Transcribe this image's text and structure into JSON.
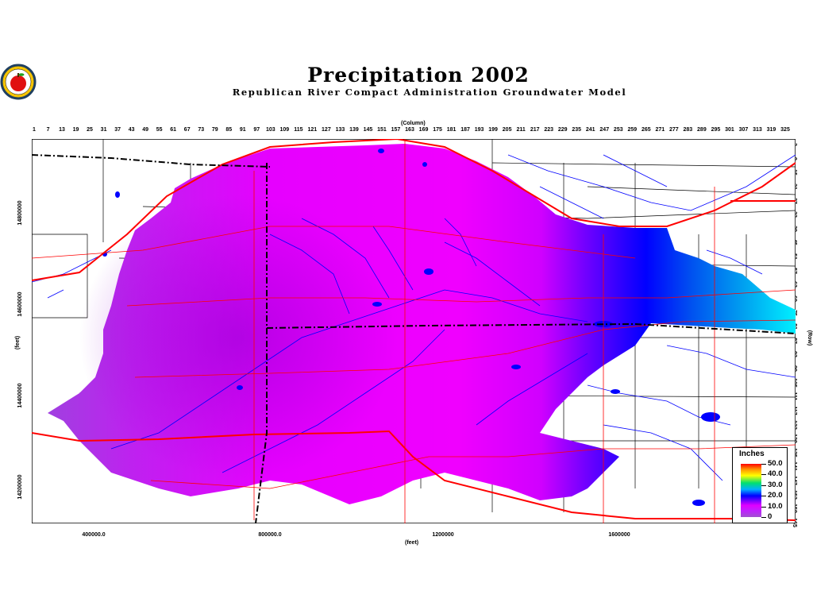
{
  "title": "Precipitation 2002",
  "subtitle": "Republican River Compact Administration Groundwater Model",
  "top_axis": {
    "label": "(Column)",
    "ticks": [
      "1",
      "7",
      "13",
      "19",
      "25",
      "31",
      "37",
      "43",
      "49",
      "55",
      "61",
      "67",
      "73",
      "79",
      "85",
      "91",
      "97",
      "103",
      "109",
      "115",
      "121",
      "127",
      "133",
      "139",
      "145",
      "151",
      "157",
      "163",
      "169",
      "175",
      "181",
      "187",
      "193",
      "199",
      "205",
      "211",
      "217",
      "223",
      "229",
      "235",
      "241",
      "247",
      "253",
      "259",
      "265",
      "271",
      "277",
      "283",
      "289",
      "295",
      "301",
      "307",
      "313",
      "319",
      "325"
    ]
  },
  "right_axis": {
    "label": "(Row)",
    "ticks": [
      "3",
      "9",
      "15",
      "21",
      "27",
      "33",
      "39",
      "45",
      "51",
      "57",
      "63",
      "69",
      "75",
      "81",
      "87",
      "93",
      "99",
      "105",
      "111",
      "117",
      "123",
      "129",
      "135",
      "141",
      "147",
      "153",
      "159",
      "165"
    ]
  },
  "bottom_axis": {
    "label": "(feet)",
    "ticks": [
      "400000.0",
      "800000.0",
      "1200000",
      "1600000"
    ]
  },
  "left_axis": {
    "label": "(feet)",
    "ticks": [
      "14800000",
      "14600000",
      "14400000",
      "14200000"
    ]
  },
  "legend": {
    "title": "Inches",
    "entries": [
      "50.0",
      "40.0",
      "30.0",
      "20.0",
      "10.0",
      "0"
    ]
  },
  "colors": {
    "dry": "#ff00ff",
    "mid": "#0000ff",
    "wet": "#00e0ff",
    "roads": "#ff0000",
    "streams": "#0000ff",
    "boundaries": "#000000"
  }
}
